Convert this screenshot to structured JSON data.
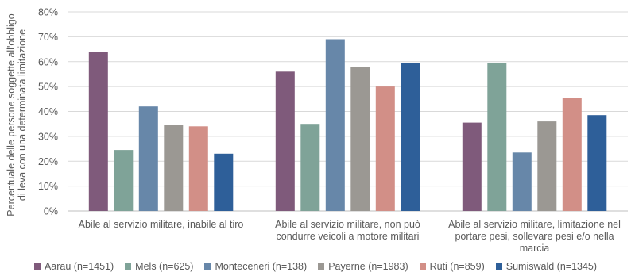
{
  "chart_data": {
    "type": "bar",
    "title": "",
    "xlabel": "",
    "ylabel": "Percentuale delle persone soggette all'obbligo di leva con una determinata limitazione",
    "ylim": [
      0,
      80
    ],
    "yticks": [
      "0%",
      "10%",
      "20%",
      "30%",
      "40%",
      "50%",
      "60%",
      "70%",
      "80%"
    ],
    "y_unit": "%",
    "grid": true,
    "legend_position": "bottom",
    "categories": [
      [
        "Abile al servizio militare, inabile al tiro"
      ],
      [
        "Abile al servizio militare, non può",
        "condurre veicoli a motore militari"
      ],
      [
        "Abile al servizio militare, limitazione nel",
        "portare pesi, sollevare pesi e/o nella",
        "marcia"
      ]
    ],
    "series": [
      {
        "name": "Aarau (n=1451)",
        "color": "#7F5A7B",
        "values": [
          64,
          56,
          35.5
        ]
      },
      {
        "name": "Mels (n=625)",
        "color": "#7FA398",
        "values": [
          24.5,
          35,
          59.5
        ]
      },
      {
        "name": "Monteceneri (n=138)",
        "color": "#6787A9",
        "values": [
          42,
          69,
          23.5
        ]
      },
      {
        "name": "Payerne (n=1983)",
        "color": "#9B9893",
        "values": [
          34.5,
          58,
          36
        ]
      },
      {
        "name": "Rüti (n=859)",
        "color": "#D28F87",
        "values": [
          34,
          50,
          45.5
        ]
      },
      {
        "name": "Sumiswald (n=1345)",
        "color": "#2E5F99",
        "values": [
          23,
          59.5,
          38.5
        ]
      }
    ]
  }
}
